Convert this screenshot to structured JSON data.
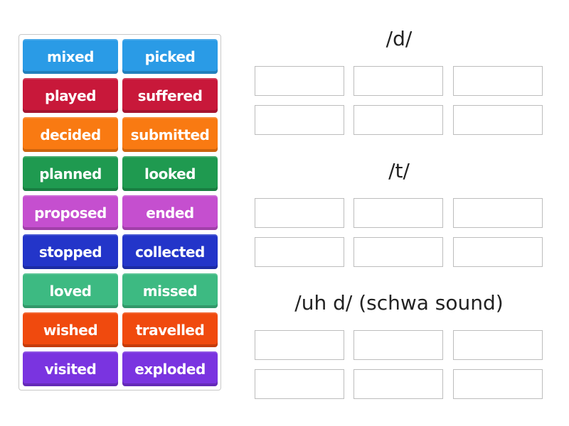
{
  "tiles": [
    {
      "label": "mixed",
      "color": "#2a9be6"
    },
    {
      "label": "picked",
      "color": "#2a9be6"
    },
    {
      "label": "played",
      "color": "#c8183a"
    },
    {
      "label": "suffered",
      "color": "#c8183a"
    },
    {
      "label": "decided",
      "color": "#f97a12"
    },
    {
      "label": "submitted",
      "color": "#f97a12"
    },
    {
      "label": "planned",
      "color": "#1f9a50"
    },
    {
      "label": "looked",
      "color": "#1f9a50"
    },
    {
      "label": "proposed",
      "color": "#c54fcf"
    },
    {
      "label": "ended",
      "color": "#c54fcf"
    },
    {
      "label": "stopped",
      "color": "#2335c9"
    },
    {
      "label": "collected",
      "color": "#2335c9"
    },
    {
      "label": "loved",
      "color": "#3dba82"
    },
    {
      "label": "missed",
      "color": "#3dba82"
    },
    {
      "label": "wished",
      "color": "#f04a0e"
    },
    {
      "label": "travelled",
      "color": "#f04a0e"
    },
    {
      "label": "visited",
      "color": "#7a34e0"
    },
    {
      "label": "exploded",
      "color": "#7a34e0"
    }
  ],
  "groups": [
    {
      "heading": "/d/"
    },
    {
      "heading": "/t/"
    },
    {
      "heading": "/uh d/ (schwa sound)"
    }
  ]
}
